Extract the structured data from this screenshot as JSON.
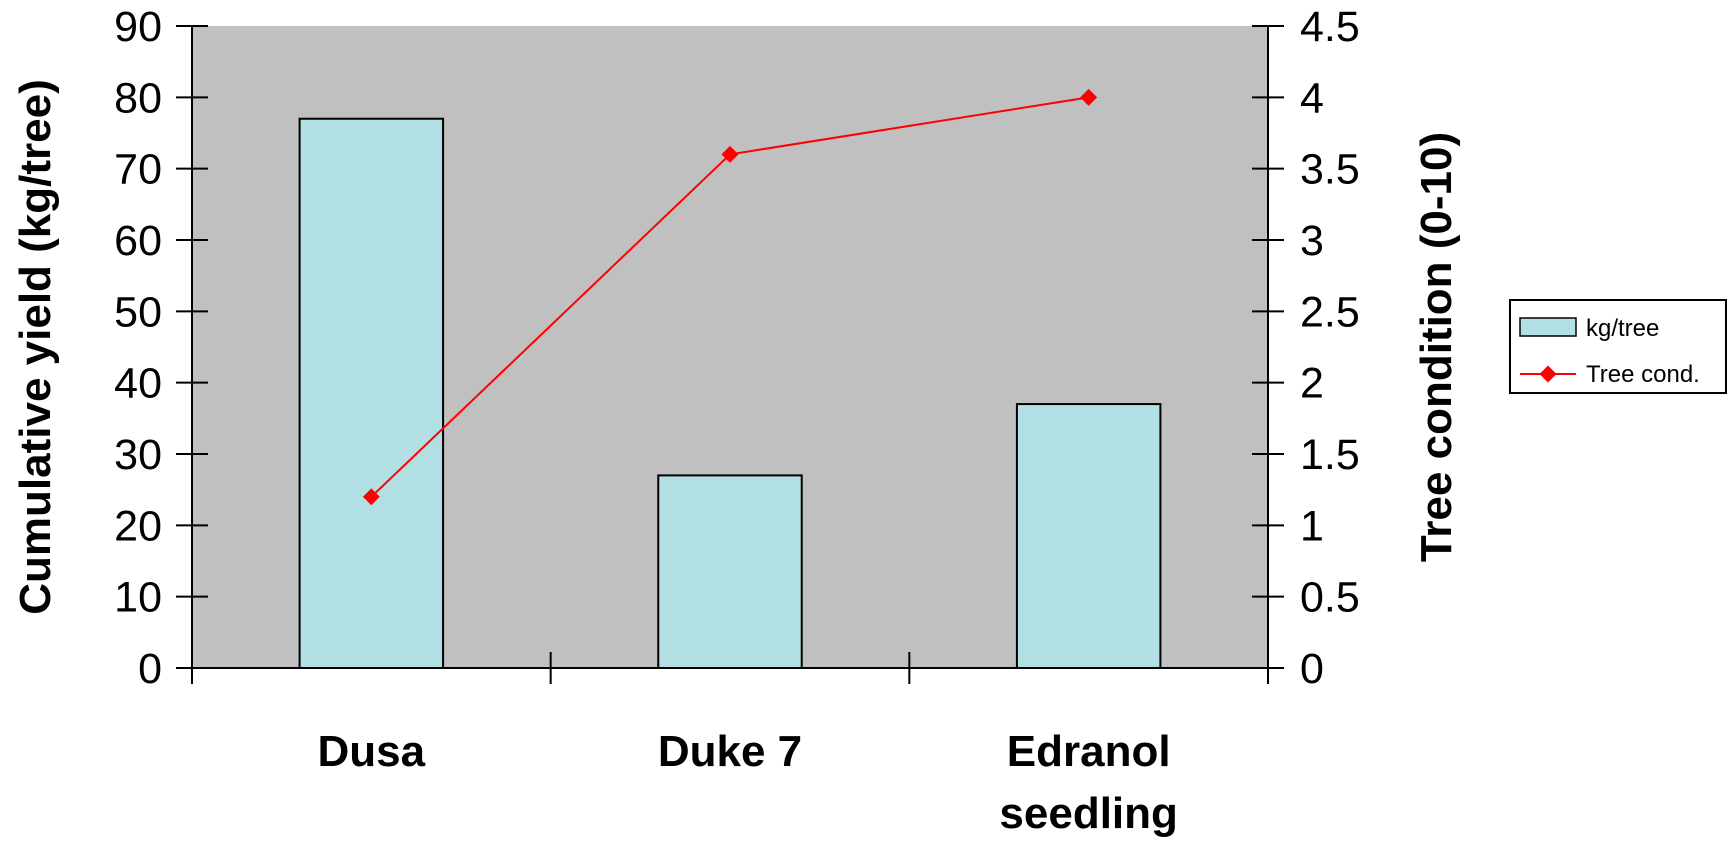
{
  "chart_data": {
    "type": "bar",
    "title": "",
    "xlabel": "",
    "ylabel": "Cumulative yield (kg/tree)",
    "y2label": "Tree condition (0-10)",
    "categories": [
      [
        "Dusa"
      ],
      [
        "Duke 7"
      ],
      [
        "Edranol",
        "seedling"
      ]
    ],
    "ylim": [
      0,
      90
    ],
    "yticks": [
      0,
      10,
      20,
      30,
      40,
      50,
      60,
      70,
      80,
      90
    ],
    "y2lim": [
      0,
      4.5
    ],
    "y2ticks": [
      "0",
      "0.5",
      "1",
      "1.5",
      "2",
      "2.5",
      "3",
      "3.5",
      "4",
      "4.5"
    ],
    "grid": false,
    "legend_position": "right",
    "plot_background": "#c0c0c0",
    "series": [
      {
        "name": "kg/tree",
        "type": "bar",
        "axis": "left",
        "color": "#b2dfe3",
        "values": [
          77,
          27,
          37
        ]
      },
      {
        "name": "Tree cond.",
        "type": "line",
        "axis": "right",
        "color": "#ff0000",
        "marker": "diamond",
        "values": [
          1.2,
          3.6,
          4.0
        ]
      }
    ]
  }
}
